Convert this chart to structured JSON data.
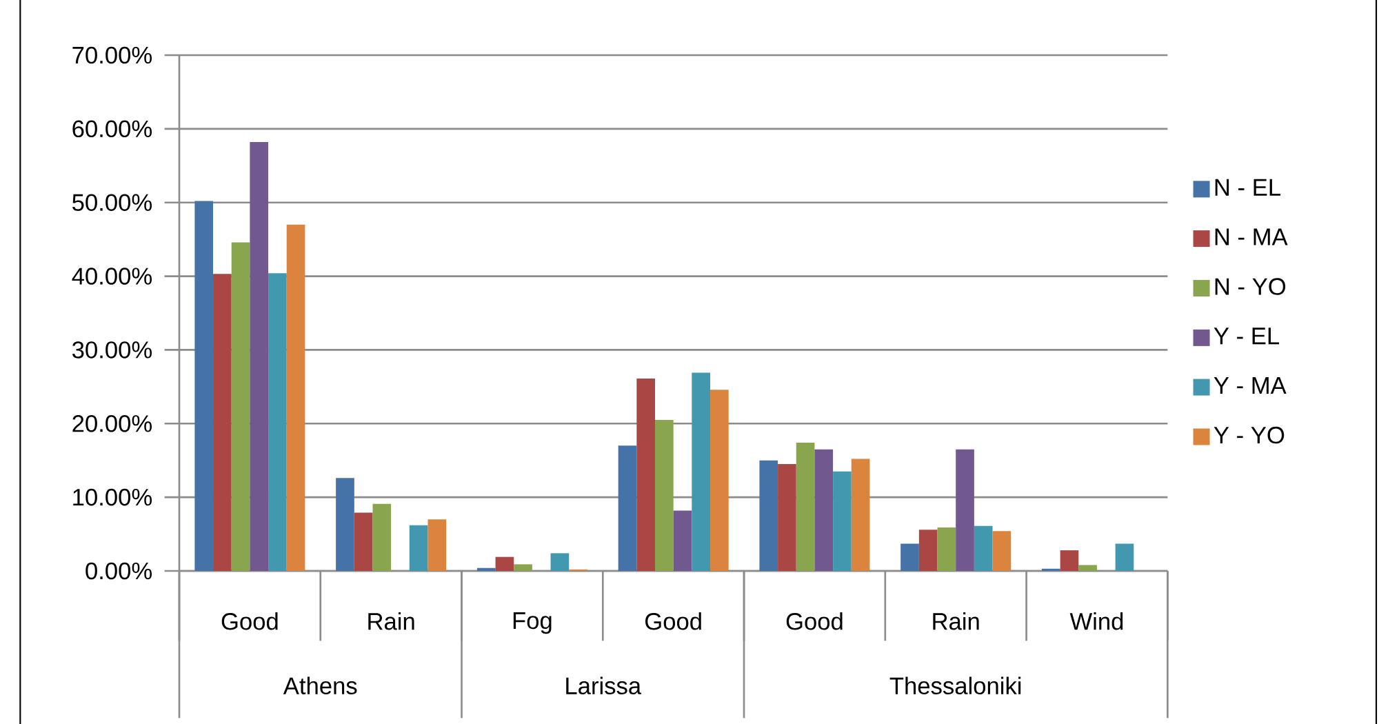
{
  "chart_data": {
    "type": "bar",
    "categories": [
      "Good",
      "Rain",
      "Fog",
      "Good",
      "Good",
      "Rain",
      "Wind"
    ],
    "annotations": [
      "Athens",
      "Larissa",
      "Thessaloniki"
    ],
    "series": [
      {
        "name": "N - EL",
        "color": "#4572a7",
        "values": [
          50.2,
          12.6,
          0.4,
          17.0,
          15.0,
          3.7,
          0.3
        ]
      },
      {
        "name": "N - MA",
        "color": "#aa4643",
        "values": [
          40.3,
          7.9,
          1.9,
          26.1,
          14.5,
          5.6,
          2.8
        ]
      },
      {
        "name": "N - YO",
        "color": "#89a54e",
        "values": [
          44.6,
          9.1,
          0.9,
          20.5,
          17.4,
          5.9,
          0.8
        ]
      },
      {
        "name": "Y - EL",
        "color": "#71588f",
        "values": [
          58.2,
          0,
          0,
          8.2,
          16.5,
          16.5,
          0
        ]
      },
      {
        "name": "Y - MA",
        "color": "#4198af",
        "values": [
          40.4,
          6.2,
          2.4,
          26.9,
          13.5,
          6.1,
          3.7
        ]
      },
      {
        "name": "Y - YO",
        "color": "#db843d",
        "values": [
          47.0,
          7.0,
          0.2,
          24.6,
          15.2,
          5.4,
          0
        ]
      }
    ],
    "ylim": [
      0,
      70
    ],
    "yticks": [
      {
        "value": 0,
        "label": "0.00%"
      },
      {
        "value": 10,
        "label": "10.00%"
      },
      {
        "value": 20,
        "label": "20.00%"
      },
      {
        "value": 30,
        "label": "30.00%"
      },
      {
        "value": 40,
        "label": "40.00%"
      },
      {
        "value": 50,
        "label": "50.00%"
      },
      {
        "value": 60,
        "label": "60.00%"
      },
      {
        "value": 70,
        "label": "70.00%"
      }
    ],
    "grid": "y",
    "legend": "right"
  }
}
